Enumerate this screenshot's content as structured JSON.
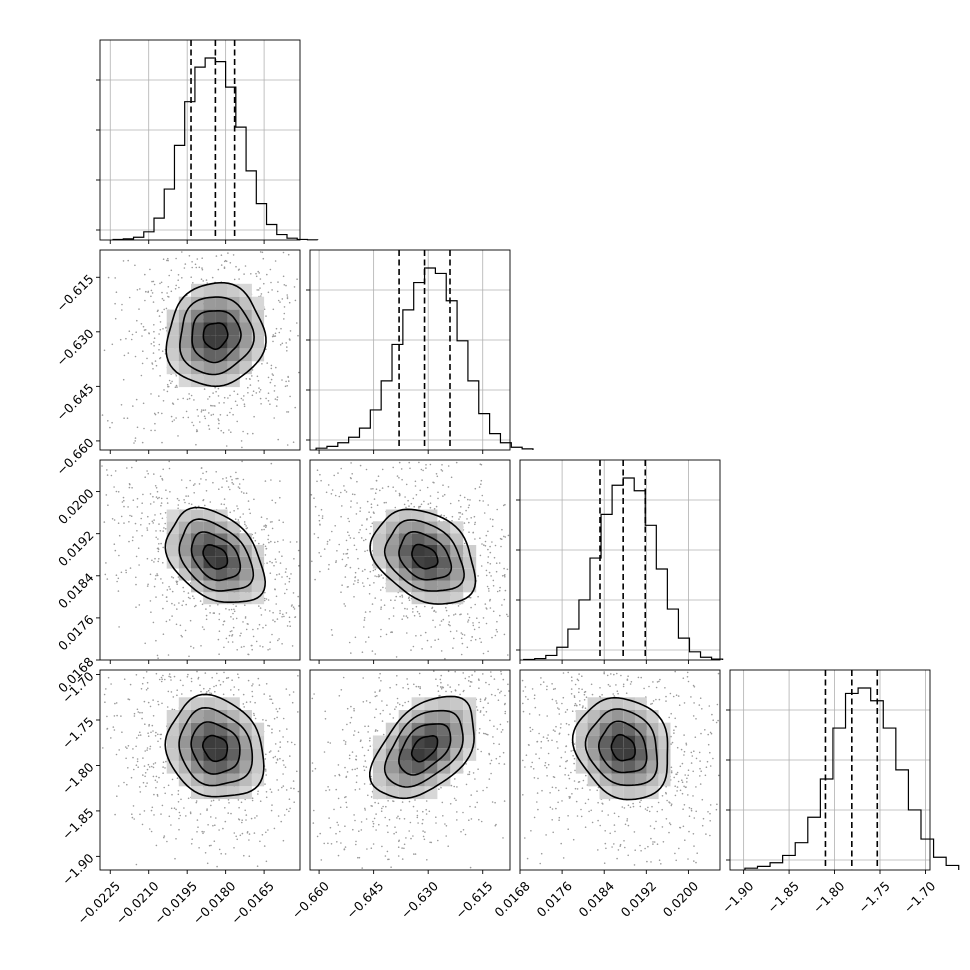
{
  "chart_data": {
    "type": "corner",
    "parameters": [
      {
        "index": 0,
        "center": -0.0184,
        "sigma": 0.00095,
        "quantiles": [
          -0.01935,
          -0.0184,
          -0.01765
        ],
        "range": [
          -0.0229,
          -0.0151
        ],
        "ticks": [
          -0.0225,
          -0.021,
          -0.0195,
          -0.018,
          -0.0165
        ],
        "tick_labels": [
          "−0.0225",
          "−0.0210",
          "−0.0195",
          "−0.0180",
          "−0.0165"
        ],
        "hist": [
          0.003,
          0.006,
          0.015,
          0.045,
          0.12,
          0.28,
          0.52,
          0.76,
          0.95,
          1.0,
          0.98,
          0.84,
          0.62,
          0.38,
          0.2,
          0.085,
          0.03,
          0.01,
          0.003,
          0.001
        ]
      },
      {
        "index": 1,
        "center": -0.631,
        "sigma": 0.0071,
        "quantiles": [
          -0.638,
          -0.631,
          -0.624
        ],
        "range": [
          -0.6625,
          -0.6075
        ],
        "ticks": [
          -0.66,
          -0.645,
          -0.63,
          -0.615
        ],
        "tick_labels": [
          "−0.660",
          "−0.645",
          "−0.630",
          "−0.615"
        ],
        "hist": [
          0.01,
          0.02,
          0.04,
          0.07,
          0.12,
          0.22,
          0.38,
          0.58,
          0.77,
          0.92,
          1.0,
          0.97,
          0.82,
          0.6,
          0.38,
          0.2,
          0.09,
          0.04,
          0.015,
          0.006
        ]
      },
      {
        "index": 2,
        "center": 0.01876,
        "sigma": 0.00045,
        "quantiles": [
          0.01832,
          0.01876,
          0.01918
        ],
        "range": [
          0.0168,
          0.0206
        ],
        "ticks": [
          0.0168,
          0.0176,
          0.0184,
          0.0192,
          0.02
        ],
        "tick_labels": [
          "0.0168",
          "0.0176",
          "0.0184",
          "0.0192",
          "0.0200"
        ],
        "hist": [
          0.003,
          0.008,
          0.025,
          0.07,
          0.17,
          0.33,
          0.56,
          0.8,
          0.96,
          1.0,
          0.93,
          0.74,
          0.5,
          0.28,
          0.12,
          0.045,
          0.015,
          0.005
        ]
      },
      {
        "index": 3,
        "center": -1.781,
        "sigma": 0.028,
        "quantiles": [
          -1.81,
          -1.781,
          -1.753
        ],
        "range": [
          -1.915,
          -1.695
        ],
        "ticks": [
          -1.9,
          -1.85,
          -1.8,
          -1.75,
          -1.7
        ],
        "tick_labels": [
          "−1.90",
          "−1.85",
          "−1.80",
          "−1.75",
          "−1.70"
        ],
        "hist": [
          0.01,
          0.02,
          0.04,
          0.08,
          0.15,
          0.29,
          0.5,
          0.78,
          0.97,
          1.0,
          0.93,
          0.78,
          0.55,
          0.33,
          0.17,
          0.07,
          0.025
        ]
      }
    ],
    "correlations": [
      [
        1,
        0,
        1,
        0.05
      ],
      [
        2,
        0,
        2,
        -0.35
      ],
      [
        3,
        0,
        3,
        -0.15
      ],
      [
        2,
        1,
        2,
        -0.3
      ],
      [
        3,
        1,
        3,
        0.45
      ],
      [
        3,
        2,
        3,
        -0.15
      ]
    ],
    "contour_levels": [
      0.5,
      1.0,
      1.5,
      2.0
    ],
    "grid": true,
    "legend": "none"
  }
}
